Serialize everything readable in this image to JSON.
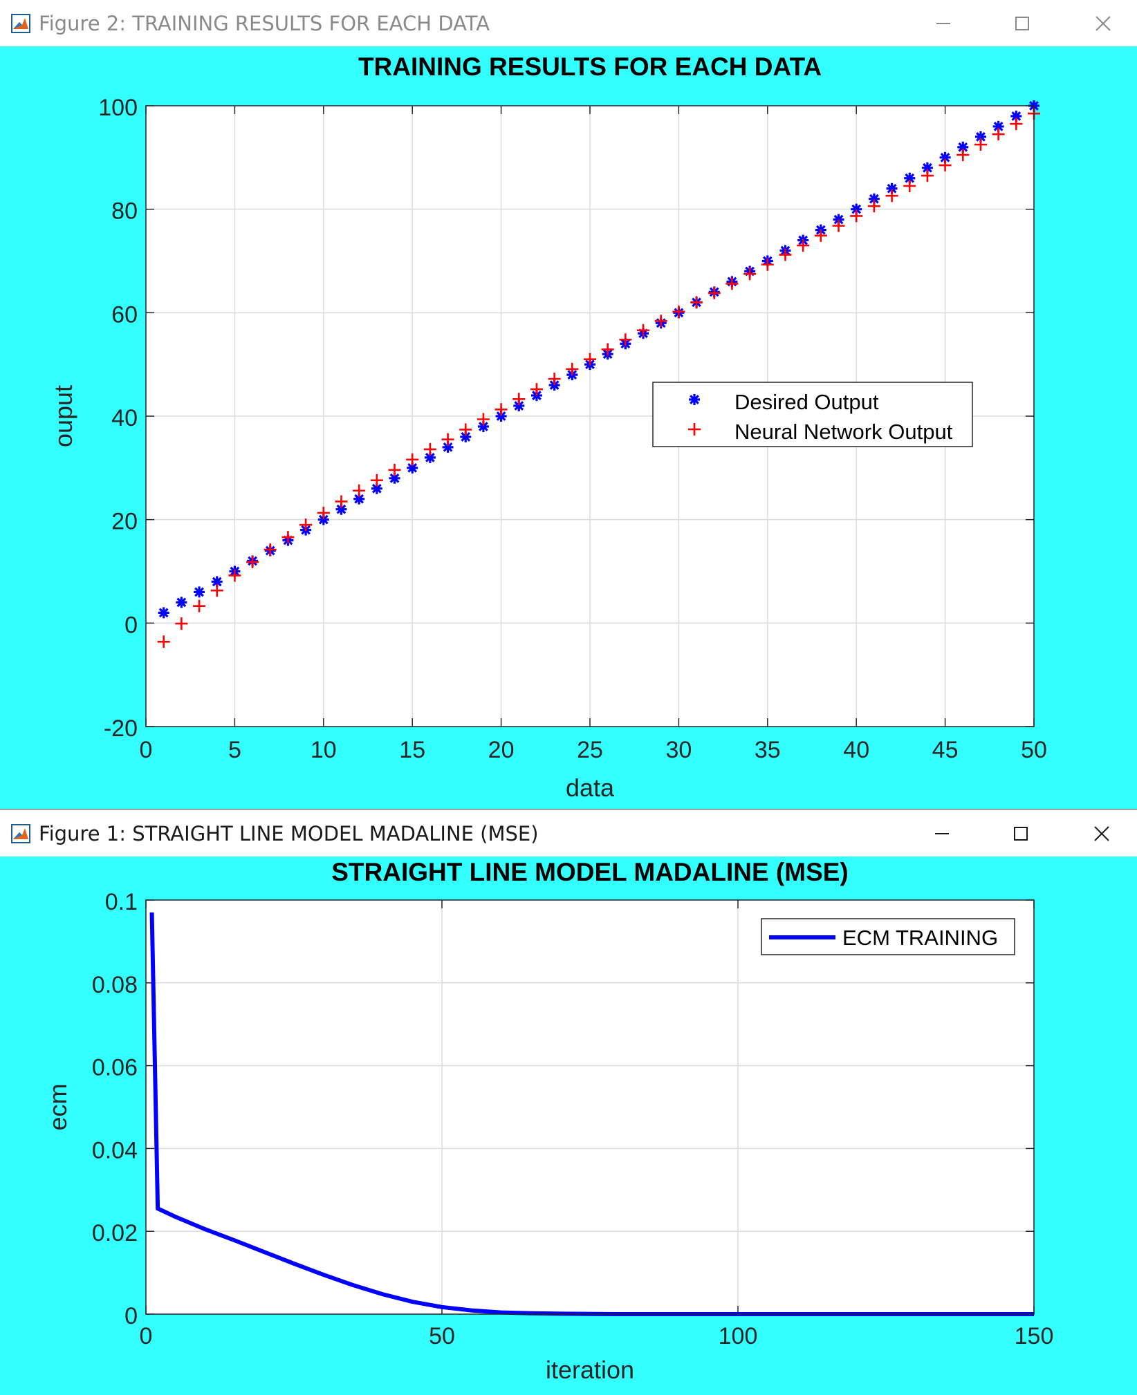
{
  "windows": [
    {
      "title": "Figure 2: TRAINING RESULTS FOR EACH DATA",
      "controls": [
        "minimize-icon",
        "maximize-icon",
        "close-icon"
      ]
    },
    {
      "title": "Figure 1: STRAIGHT LINE MODEL MADALINE (MSE)",
      "controls": [
        "minimize-icon",
        "maximize-icon",
        "close-icon"
      ]
    }
  ],
  "colors": {
    "figure_background": "#33ffff",
    "axes_background": "#ffffff",
    "desired": "#0000ff",
    "network": "#ff0000",
    "ecm_line": "#0000ff",
    "grid": "#dcdcdc"
  },
  "chart_data": [
    {
      "type": "scatter",
      "title": "TRAINING RESULTS FOR EACH DATA",
      "xlabel": "data",
      "ylabel": "ouput",
      "xlim": [
        0,
        50
      ],
      "ylim": [
        -20,
        100
      ],
      "xticks": [
        0,
        5,
        10,
        15,
        20,
        25,
        30,
        35,
        40,
        45,
        50
      ],
      "xtick_labels": [
        "0",
        "5",
        "10",
        "15",
        "20",
        "25",
        "30",
        "35",
        "40",
        "45",
        "50"
      ],
      "yticks": [
        -20,
        0,
        20,
        40,
        60,
        80,
        100
      ],
      "ytick_labels": [
        "-20",
        "0",
        "20",
        "40",
        "60",
        "80",
        "100"
      ],
      "grid": true,
      "legend_position": "center-right",
      "series": [
        {
          "name": "Desired Output",
          "marker": "asterisk",
          "color": "#0000ff",
          "x": [
            1,
            2,
            3,
            4,
            5,
            6,
            7,
            8,
            9,
            10,
            11,
            12,
            13,
            14,
            15,
            16,
            17,
            18,
            19,
            20,
            21,
            22,
            23,
            24,
            25,
            26,
            27,
            28,
            29,
            30,
            31,
            32,
            33,
            34,
            35,
            36,
            37,
            38,
            39,
            40,
            41,
            42,
            43,
            44,
            45,
            46,
            47,
            48,
            49,
            50
          ],
          "y": [
            2,
            4,
            6,
            8,
            10,
            12,
            14,
            16,
            18,
            20,
            22,
            24,
            26,
            28,
            30,
            32,
            34,
            36,
            38,
            40,
            42,
            44,
            46,
            48,
            50,
            52,
            54,
            56,
            58,
            60,
            62,
            64,
            66,
            68,
            70,
            72,
            74,
            76,
            78,
            80,
            82,
            84,
            86,
            88,
            90,
            92,
            94,
            96,
            98,
            100
          ]
        },
        {
          "name": "Neural Network Output",
          "marker": "plus",
          "color": "#ff0000",
          "x": [
            1,
            2,
            3,
            4,
            5,
            6,
            7,
            8,
            9,
            10,
            11,
            12,
            13,
            14,
            15,
            16,
            17,
            18,
            19,
            20,
            21,
            22,
            23,
            24,
            25,
            26,
            27,
            28,
            29,
            30,
            31,
            32,
            33,
            34,
            35,
            36,
            37,
            38,
            39,
            40,
            41,
            42,
            43,
            44,
            45,
            46,
            47,
            48,
            49,
            50
          ],
          "y": [
            -3.6,
            -0.1,
            3.3,
            6.3,
            9.2,
            11.8,
            14.2,
            16.6,
            19.0,
            21.3,
            23.5,
            25.6,
            27.6,
            29.6,
            31.6,
            33.6,
            35.5,
            37.4,
            39.4,
            41.3,
            43.3,
            45.2,
            47.2,
            49.1,
            51.0,
            52.9,
            54.8,
            56.6,
            58.4,
            60.2,
            62.0,
            63.8,
            65.6,
            67.5,
            69.3,
            71.2,
            73.0,
            74.9,
            76.8,
            78.7,
            80.6,
            82.6,
            84.5,
            86.5,
            88.5,
            90.5,
            92.5,
            94.5,
            96.5,
            98.5
          ]
        }
      ]
    },
    {
      "type": "line",
      "title": "STRAIGHT LINE MODEL MADALINE (MSE)",
      "xlabel": "iteration",
      "ylabel": "ecm",
      "xlim": [
        0,
        150
      ],
      "ylim": [
        0,
        0.1
      ],
      "xticks": [
        0,
        50,
        100,
        150
      ],
      "xtick_labels": [
        "0",
        "50",
        "100",
        "150"
      ],
      "yticks": [
        0,
        0.02,
        0.04,
        0.06,
        0.08,
        0.1
      ],
      "ytick_labels": [
        "0",
        "0.02",
        "0.04",
        "0.06",
        "0.08",
        "0.1"
      ],
      "grid": true,
      "legend_position": "top-right",
      "series": [
        {
          "name": "ECM TRAINING",
          "color": "#0000ff",
          "x": [
            1,
            2,
            5,
            10,
            15,
            20,
            25,
            30,
            35,
            40,
            45,
            50,
            55,
            60,
            65,
            70,
            80,
            90,
            100,
            120,
            150
          ],
          "y": [
            0.097,
            0.0255,
            0.0235,
            0.0205,
            0.0178,
            0.015,
            0.0122,
            0.0095,
            0.007,
            0.0048,
            0.003,
            0.0017,
            0.0009,
            0.0004,
            0.0002,
            0.0001,
            0.0,
            0.0,
            0.0,
            0.0,
            0.0
          ]
        }
      ]
    }
  ]
}
